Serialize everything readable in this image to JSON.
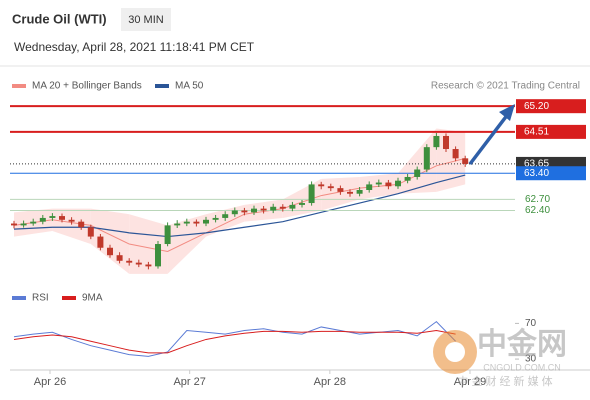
{
  "header": {
    "title": "Crude Oil (WTI)",
    "interval": "30 MIN",
    "datetime": "Wednesday, April 28, 2021 11:18:41 PM CET"
  },
  "source": "Research © 2021 Trading Central",
  "watermark": {
    "brand": "中金网",
    "site": "CNGOLD.COM.CN",
    "tagline": "中 金 财 经 新 媒 体"
  },
  "chart_data": [
    {
      "type": "candlestick",
      "ylim": [
        60.4,
        65.5
      ],
      "up_color": "#3d8f3d",
      "down_color": "#c0392b",
      "candles": [
        [
          62.05,
          62.12,
          61.92,
          62.0
        ],
        [
          62.0,
          62.13,
          61.94,
          62.05
        ],
        [
          62.05,
          62.18,
          61.99,
          62.1
        ],
        [
          62.1,
          62.28,
          62.03,
          62.2
        ],
        [
          62.2,
          62.33,
          62.12,
          62.25
        ],
        [
          62.25,
          62.32,
          62.08,
          62.15
        ],
        [
          62.15,
          62.22,
          62.02,
          62.1
        ],
        [
          62.1,
          62.16,
          61.88,
          61.95
        ],
        [
          61.95,
          62.02,
          61.63,
          61.7
        ],
        [
          61.7,
          61.77,
          61.33,
          61.4
        ],
        [
          61.4,
          61.48,
          61.13,
          61.2
        ],
        [
          61.2,
          61.28,
          60.98,
          61.05
        ],
        [
          61.05,
          61.12,
          60.92,
          61.0
        ],
        [
          61.0,
          61.08,
          60.88,
          60.95
        ],
        [
          60.95,
          61.02,
          60.82,
          60.9
        ],
        [
          60.9,
          61.58,
          60.84,
          61.5
        ],
        [
          61.5,
          62.08,
          61.44,
          62.0
        ],
        [
          62.0,
          62.14,
          61.93,
          62.05
        ],
        [
          62.05,
          62.18,
          61.98,
          62.1
        ],
        [
          62.1,
          62.16,
          61.97,
          62.05
        ],
        [
          62.05,
          62.23,
          61.98,
          62.15
        ],
        [
          62.15,
          62.28,
          62.08,
          62.2
        ],
        [
          62.2,
          62.38,
          62.12,
          62.3
        ],
        [
          62.3,
          62.48,
          62.23,
          62.4
        ],
        [
          62.4,
          62.47,
          62.27,
          62.35
        ],
        [
          62.35,
          62.53,
          62.28,
          62.45
        ],
        [
          62.45,
          62.52,
          62.32,
          62.4
        ],
        [
          62.4,
          62.58,
          62.33,
          62.5
        ],
        [
          62.5,
          62.57,
          62.37,
          62.45
        ],
        [
          62.45,
          62.63,
          62.38,
          62.55
        ],
        [
          62.55,
          62.68,
          62.48,
          62.6
        ],
        [
          62.6,
          63.18,
          62.53,
          63.1
        ],
        [
          63.1,
          63.17,
          62.97,
          63.05
        ],
        [
          63.05,
          63.12,
          62.92,
          63.0
        ],
        [
          63.0,
          63.07,
          62.82,
          62.9
        ],
        [
          62.9,
          62.97,
          62.77,
          62.85
        ],
        [
          62.85,
          63.03,
          62.78,
          62.95
        ],
        [
          62.95,
          63.18,
          62.88,
          63.1
        ],
        [
          63.1,
          63.23,
          63.03,
          63.15
        ],
        [
          63.15,
          63.22,
          62.97,
          63.05
        ],
        [
          63.05,
          63.28,
          62.98,
          63.2
        ],
        [
          63.2,
          63.38,
          63.13,
          63.3
        ],
        [
          63.3,
          63.58,
          63.23,
          63.5
        ],
        [
          63.5,
          64.18,
          63.43,
          64.1
        ],
        [
          64.1,
          64.48,
          64.03,
          64.4
        ],
        [
          64.4,
          64.47,
          63.97,
          64.05
        ],
        [
          64.05,
          64.12,
          63.72,
          63.8
        ],
        [
          63.8,
          63.87,
          63.57,
          63.65
        ]
      ],
      "band_x": [
        0,
        4,
        8,
        12,
        16,
        20,
        24,
        28,
        32,
        36,
        40,
        44,
        47
      ],
      "bollinger": {
        "name": "MA 20 + Bollinger Bands",
        "color": "#f28b82",
        "fill": "#fde3e1",
        "upper": [
          62.35,
          62.45,
          62.45,
          62.3,
          62.0,
          62.3,
          62.55,
          62.7,
          63.25,
          63.3,
          63.4,
          64.6,
          64.5
        ],
        "lower": [
          61.7,
          61.85,
          61.5,
          60.7,
          60.7,
          61.7,
          62.1,
          62.2,
          62.4,
          62.7,
          62.85,
          62.9,
          63.1
        ],
        "ma": [
          62.0,
          62.15,
          62.0,
          61.5,
          61.3,
          61.8,
          62.3,
          62.45,
          62.8,
          63.0,
          63.1,
          63.6,
          63.8
        ]
      },
      "ma50": {
        "name": "MA 50",
        "color": "#2b5597",
        "values": [
          61.9,
          61.95,
          61.95,
          61.8,
          61.7,
          61.8,
          61.95,
          62.1,
          62.35,
          62.6,
          62.85,
          63.15,
          63.35
        ]
      },
      "levels": [
        {
          "value": 65.2,
          "label": "65.20",
          "color": "#d81e1e",
          "style": "box"
        },
        {
          "value": 64.51,
          "label": "64.51",
          "color": "#d81e1e",
          "style": "box"
        },
        {
          "value": 63.65,
          "label": "63.65",
          "color": "#333333",
          "style": "dotted"
        },
        {
          "value": 63.4,
          "label": "63.40",
          "color": "#1f6fe0",
          "style": "box"
        },
        {
          "value": 62.7,
          "label": "62.70",
          "color": "#3d8f3d",
          "style": "text"
        },
        {
          "value": 62.4,
          "label": "62.40",
          "color": "#3d8f3d",
          "style": "text"
        }
      ],
      "xticks": [
        {
          "value": 3.75,
          "label": "Apr 26"
        },
        {
          "value": 18.3,
          "label": "Apr 27"
        },
        {
          "value": 32.9,
          "label": "Apr 28"
        },
        {
          "value": 47.5,
          "label": "Apr 29"
        }
      ]
    },
    {
      "type": "line",
      "ylim": [
        20,
        85
      ],
      "yticks": [
        70,
        30
      ],
      "x": [
        0,
        2,
        4,
        6,
        8,
        10,
        12,
        14,
        16,
        18,
        20,
        22,
        24,
        26,
        28,
        30,
        32,
        34,
        36,
        38,
        40,
        42,
        44,
        46
      ],
      "series": [
        {
          "name": "RSI",
          "color": "#5b7bd5",
          "values": [
            55,
            58,
            60,
            52,
            45,
            40,
            35,
            33,
            38,
            62,
            60,
            58,
            62,
            64,
            60,
            58,
            66,
            62,
            58,
            60,
            62,
            56,
            72,
            50
          ]
        },
        {
          "name": "9MA",
          "color": "#d81e1e",
          "values": [
            52,
            55,
            57,
            55,
            50,
            45,
            40,
            37,
            37,
            45,
            52,
            56,
            59,
            61,
            61,
            60,
            61,
            61,
            60,
            60,
            60,
            59,
            62,
            58
          ]
        }
      ]
    }
  ]
}
